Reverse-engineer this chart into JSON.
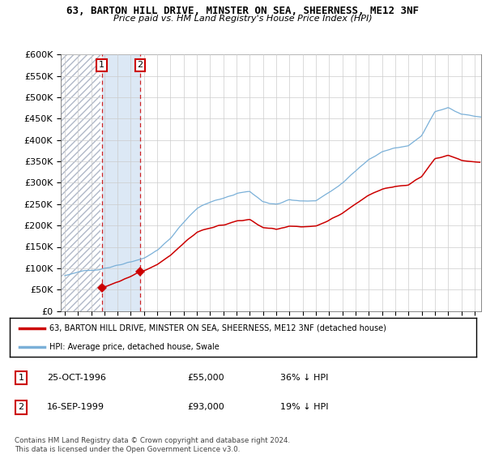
{
  "title": "63, BARTON HILL DRIVE, MINSTER ON SEA, SHEERNESS, ME12 3NF",
  "subtitle": "Price paid vs. HM Land Registry's House Price Index (HPI)",
  "ylabel_ticks": [
    "£0",
    "£50K",
    "£100K",
    "£150K",
    "£200K",
    "£250K",
    "£300K",
    "£350K",
    "£400K",
    "£450K",
    "£500K",
    "£550K",
    "£600K"
  ],
  "ytick_values": [
    0,
    50000,
    100000,
    150000,
    200000,
    250000,
    300000,
    350000,
    400000,
    450000,
    500000,
    550000,
    600000
  ],
  "xlim_start": 1993.7,
  "xlim_end": 2025.5,
  "ylim_min": 0,
  "ylim_max": 600000,
  "hpi_color": "#7ab0d8",
  "price_color": "#cc0000",
  "transaction1_date": "25-OCT-1996",
  "transaction1_price": 55000,
  "transaction1_pct": "36% ↓ HPI",
  "transaction1_label": "1",
  "transaction2_date": "16-SEP-1999",
  "transaction2_price": 93000,
  "transaction2_pct": "19% ↓ HPI",
  "transaction2_label": "2",
  "legend_property": "63, BARTON HILL DRIVE, MINSTER ON SEA, SHEERNESS, ME12 3NF (detached house)",
  "legend_hpi": "HPI: Average price, detached house, Swale",
  "footnote": "Contains HM Land Registry data © Crown copyright and database right 2024.\nThis data is licensed under the Open Government Licence v3.0.",
  "transaction1_x": 1996.81,
  "transaction2_x": 1999.71,
  "hatch_color": "#c8c8d8",
  "shade_color": "#dce8f5"
}
